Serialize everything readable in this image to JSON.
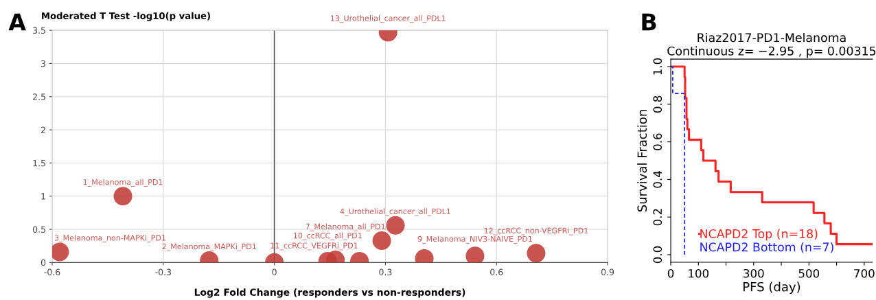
{
  "chart_data": [
    {
      "type": "scatter",
      "ylabel": "Moderated T Test -log10(p value)",
      "xlabel": "Log2 Fold Change (responders vs non-responders)",
      "series": [
        {
          "color": "#c23b36",
          "x": [
            0.307,
            -0.409,
            -0.58,
            -0.176,
            0.0,
            0.144,
            0.165,
            0.23,
            0.29,
            0.327,
            0.405,
            0.542,
            0.707
          ],
          "values": [
            3.47,
            1.0,
            0.16,
            0.03,
            0.0,
            0.02,
            0.04,
            0.02,
            0.33,
            0.56,
            0.06,
            0.1,
            0.14
          ]
        }
      ],
      "marker": "circle",
      "xlim": [
        -0.6,
        0.9
      ],
      "xticks": [
        -0.6,
        -0.3,
        0,
        0.3,
        0.6,
        0.9
      ],
      "ylim": [
        0,
        3.5
      ],
      "yticks": [
        0,
        0.5,
        1,
        1.5,
        2,
        2.5,
        3,
        3.5
      ],
      "grid": true,
      "ref_lines": [
        {
          "axis": "x",
          "value": 0,
          "color": "#555555"
        }
      ],
      "annotations": [
        "A",
        {
          "text": "13_Urothelial_cancer_all_PDL1",
          "x": 0.307,
          "y": 3.47
        },
        {
          "text": "1_Melanoma_all_PD1",
          "x": -0.409,
          "y": 1.0
        },
        {
          "text": "3_Melanoma_non-MAPKi_PD1",
          "x": -0.58,
          "y": 0.16
        },
        {
          "text": "2_Melanoma_MAPKi_PD1",
          "x": -0.176,
          "y": 0.03
        },
        {
          "text": "11_ccRCC_VEGFRi_PD1",
          "x": 0.0,
          "y": 0.0
        },
        {
          "text": "10_ccRCC_all_PD1",
          "x": 0.144,
          "y": 0.02
        },
        {
          "text": "7_Melanoma_all_PD1",
          "x": 0.29,
          "y": 0.33
        },
        {
          "text": "4_Urothelial_cancer_all_PDL1",
          "x": 0.327,
          "y": 0.56
        },
        {
          "text": "9_Melanoma_NIV3-NAIVE_PD1",
          "x": 0.542,
          "y": 0.1
        },
        {
          "text": "12_ccRCC_non-VEGFRi_PD1",
          "x": 0.707,
          "y": 0.14
        }
      ]
    },
    {
      "type": "step",
      "title": "Riaz2017-PD1-Melanoma",
      "subtitle": "Continuous z= −2.95 , p= 0.00315",
      "xlabel": "PFS (day)",
      "ylabel": "Survival Fraction",
      "series": [
        {
          "name": "NCAPD2 Top (n=18)",
          "color": "#ff2020",
          "line_style": "solid",
          "x": [
            0,
            50,
            52,
            57,
            60,
            66,
            110,
            118,
            162,
            173,
            217,
            331,
            517,
            556,
            579,
            600,
            730
          ],
          "values": [
            1,
            0.944,
            0.833,
            0.722,
            0.667,
            0.611,
            0.556,
            0.5,
            0.444,
            0.389,
            0.333,
            0.278,
            0.222,
            0.167,
            0.111,
            0.056,
            0.056
          ]
        },
        {
          "name": "NCAPD2 Bottom (n=7)",
          "color": "#2020ff",
          "line_style": "dashed",
          "x": [
            0,
            7,
            50
          ],
          "values": [
            1,
            0.857,
            0
          ]
        }
      ],
      "xlim": [
        0,
        730
      ],
      "xticks": [
        0,
        100,
        {
          "value": 200,
          "label": null
        },
        300,
        {
          "value": 400,
          "label": null
        },
        500,
        {
          "value": 600,
          "label": null
        },
        700
      ],
      "ylim": [
        -0.04,
        1.04
      ],
      "yticks": [
        {
          "value": 0,
          "label": "0.0"
        },
        0.2,
        0.4,
        0.6,
        0.8,
        {
          "value": 1,
          "label": "1.0"
        }
      ],
      "legend": "bottom left",
      "grid": false,
      "annotations": [
        "B"
      ]
    }
  ]
}
